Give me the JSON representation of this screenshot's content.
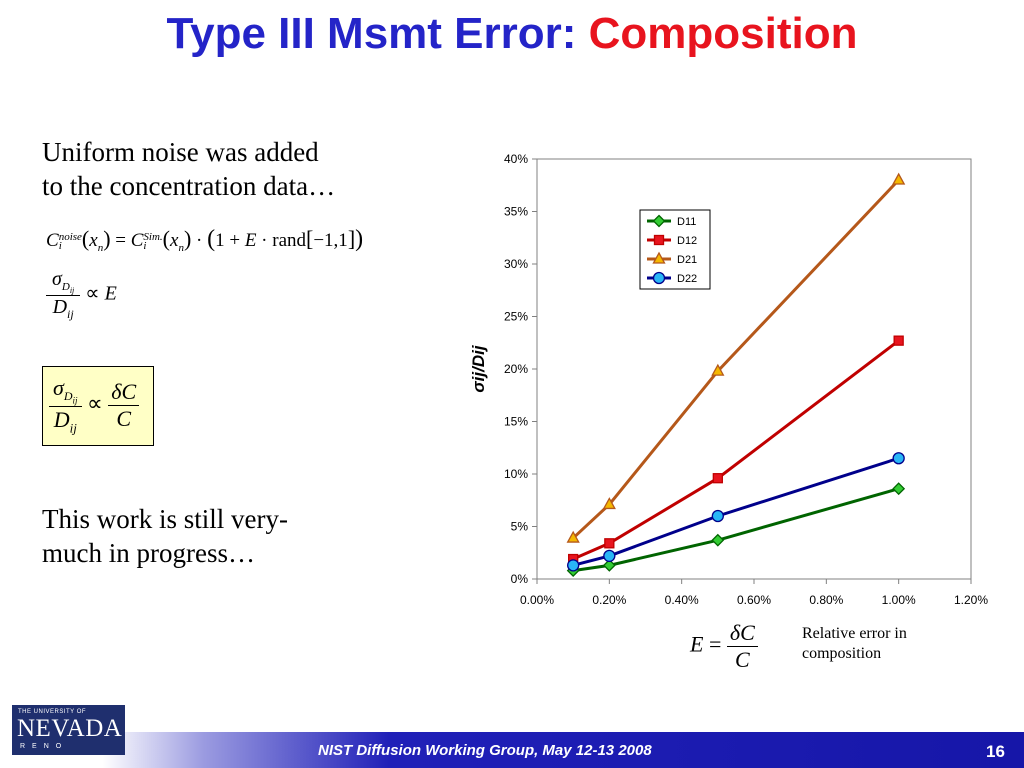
{
  "slide": {
    "title_part1": "Type III Msmt Error: ",
    "title_part2": "Composition",
    "intro_line1": "Uniform noise was added",
    "intro_line2": "to the concentration data…",
    "progress_line1": "This work is still very-",
    "progress_line2": "much in progress…",
    "footer_text": "NIST Diffusion Working Group, May 12-13 2008",
    "page_number": "16",
    "logo_top": "THE UNIVERSITY OF",
    "logo_main": "NEVADA",
    "logo_bottom": "RENO"
  },
  "equations": {
    "noise": {
      "C": "C",
      "noise_sup": "noise",
      "sim_sup": "Sim.",
      "sub_i": "i",
      "x": "x",
      "sub_n": "n",
      "equals": "=",
      "dot": "·",
      "one_plus": "1 +",
      "E": "E",
      "rand": "rand",
      "range": "−1,1"
    },
    "prop1": {
      "sigma": "σ",
      "sub_D": "D",
      "sub_ij": "ij",
      "D": "D",
      "ij": "ij",
      "propto": "∝",
      "E": "E"
    },
    "prop2": {
      "sigma": "σ",
      "sub_D": "D",
      "sub_ij": "ij",
      "D": "D",
      "ij": "ij",
      "propto": "∝",
      "deltaC": "δC",
      "C": "C"
    },
    "error_def": {
      "E": "E",
      "equals": "=",
      "deltaC": "δC",
      "C": "C"
    },
    "error_label_line1": "Relative error in",
    "error_label_line2": "composition"
  },
  "chart_data": {
    "type": "line",
    "title": "",
    "ylabel": "σij/Dij",
    "xlabel": "",
    "xlim": [
      0,
      0.012
    ],
    "ylim": [
      0,
      0.4
    ],
    "x_ticks": [
      0,
      0.002,
      0.004,
      0.006,
      0.008,
      0.01,
      0.012
    ],
    "x_tick_labels": [
      "0.00%",
      "0.20%",
      "0.40%",
      "0.60%",
      "0.80%",
      "1.00%",
      "1.20%"
    ],
    "y_ticks": [
      0,
      0.05,
      0.1,
      0.15,
      0.2,
      0.25,
      0.3,
      0.35,
      0.4
    ],
    "y_tick_labels": [
      "0%",
      "5%",
      "10%",
      "15%",
      "20%",
      "25%",
      "30%",
      "35%",
      "40%"
    ],
    "grid": false,
    "legend_position": "top-center",
    "x": [
      0.001,
      0.002,
      0.005,
      0.01
    ],
    "series": [
      {
        "name": "D11",
        "values": [
          0.008,
          0.013,
          0.037,
          0.086
        ],
        "color": "#006400",
        "marker_fill": "#33cc33",
        "marker": "diamond"
      },
      {
        "name": "D12",
        "values": [
          0.019,
          0.034,
          0.096,
          0.227
        ],
        "color": "#c00000",
        "marker_fill": "#e8141e",
        "marker": "square"
      },
      {
        "name": "D21",
        "values": [
          0.039,
          0.071,
          0.198,
          0.38
        ],
        "color": "#b5581a",
        "marker_fill": "#f5b800",
        "marker": "triangle"
      },
      {
        "name": "D22",
        "values": [
          0.013,
          0.022,
          0.06,
          0.115
        ],
        "color": "#00008b",
        "marker_fill": "#29b6f6",
        "marker": "circle"
      }
    ]
  }
}
